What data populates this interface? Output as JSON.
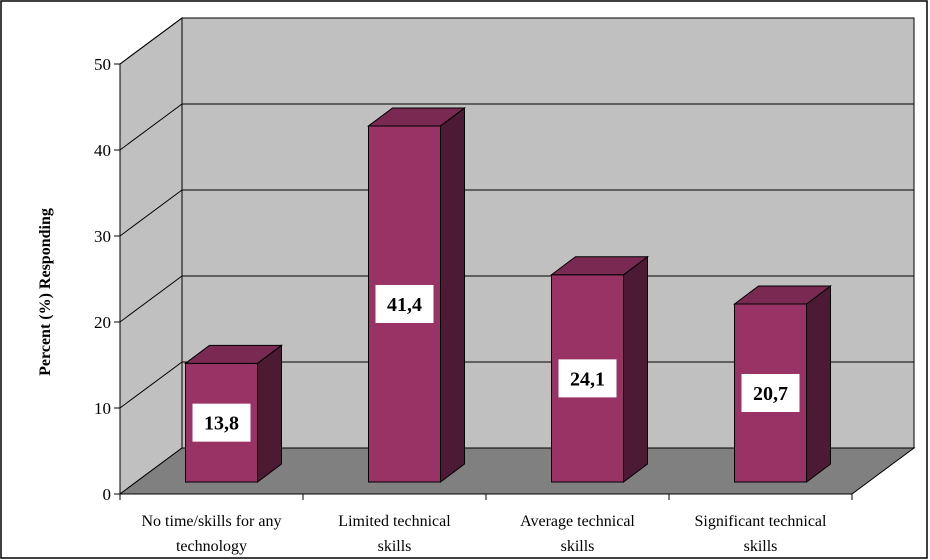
{
  "chart_data": {
    "type": "bar",
    "title": "",
    "xlabel": "",
    "ylabel": "Percent (%) Responding",
    "ylim": [
      0,
      50
    ],
    "yticks": [
      0,
      10,
      20,
      30,
      40,
      50
    ],
    "grid": true,
    "style": "3d",
    "categories": [
      [
        "No time/skills for any",
        "technology"
      ],
      [
        "Limited technical",
        "skills"
      ],
      [
        "Average technical",
        "skills"
      ],
      [
        "Significant technical",
        "skills"
      ]
    ],
    "values": [
      13.8,
      41.4,
      24.1,
      20.7
    ],
    "value_labels": [
      "13,8",
      "41,4",
      "24,1",
      "20,7"
    ]
  },
  "colors": {
    "bar_front": "#993366",
    "bar_top": "#7a2a52",
    "bar_side": "#4d1a35",
    "wall": "#c0c0c0",
    "floor": "#808080"
  }
}
